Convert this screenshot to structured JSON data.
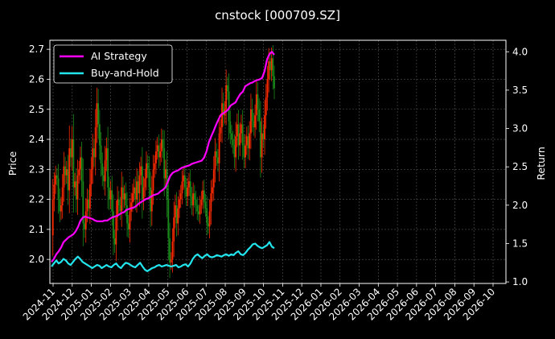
{
  "chart_data": {
    "type": "line",
    "title": "cnstock [000709.SZ]",
    "xlabel": "",
    "ylabel": "Price",
    "y2label": "Return",
    "ylim": [
      1.92,
      2.73
    ],
    "y2lim": [
      0.98,
      4.15
    ],
    "y_ticks": [
      "2.0",
      "2.1",
      "2.2",
      "2.3",
      "2.4",
      "2.5",
      "2.6",
      "2.7"
    ],
    "y2_ticks": [
      "1.0",
      "1.5",
      "2.0",
      "2.5",
      "3.0",
      "3.5",
      "4.0"
    ],
    "x_ticks": [
      "2024-11",
      "2024-12",
      "2025-01",
      "2025-02",
      "2025-03",
      "2025-04",
      "2025-05",
      "2025-06",
      "2025-07",
      "2025-08",
      "2025-09",
      "2025-10",
      "2025-11",
      "2025-12",
      "2026-01",
      "2026-02",
      "2026-03",
      "2026-04",
      "2026-05",
      "2026-06",
      "2026-07",
      "2026-08",
      "2026-09",
      "2026-10"
    ],
    "grid": true,
    "legend_position": "top-left",
    "background": "#000000",
    "price_candles": {
      "up_color": "#ff2a00",
      "down_color": "#1a8a1a",
      "dates": [
        "2024-11-01",
        "2025-11-10"
      ],
      "close": [
        2.08,
        2.2,
        2.25,
        2.28,
        2.27,
        2.2,
        2.16,
        2.18,
        2.24,
        2.31,
        2.28,
        2.3,
        2.23,
        2.37,
        2.34,
        2.4,
        2.24,
        2.26,
        2.2,
        2.28,
        2.3,
        2.34,
        2.26,
        2.12,
        2.1,
        2.16,
        2.2,
        2.17,
        2.25,
        2.3,
        2.37,
        2.34,
        2.44,
        2.52,
        2.45,
        2.38,
        2.32,
        2.28,
        2.26,
        2.33,
        2.37,
        2.24,
        2.2,
        2.23,
        2.16,
        2.07,
        2.05,
        2.14,
        2.2,
        2.18,
        2.16,
        2.24,
        2.2,
        2.22,
        2.18,
        2.12,
        2.1,
        2.16,
        2.19,
        2.22,
        2.24,
        2.2,
        2.26,
        2.22,
        2.28,
        2.31,
        2.2,
        2.24,
        2.27,
        2.32,
        2.3,
        2.24,
        2.16,
        2.23,
        2.3,
        2.32,
        2.36,
        2.38,
        2.34,
        2.36,
        2.4,
        2.37,
        2.27,
        2.3,
        2.2,
        2.07,
        1.99,
        2.0,
        2.06,
        2.14,
        2.18,
        2.12,
        2.17,
        2.2,
        2.22,
        2.26,
        2.28,
        2.24,
        2.21,
        2.24,
        2.26,
        2.21,
        2.18,
        2.22,
        2.2,
        2.18,
        2.16,
        2.15,
        2.18,
        2.2,
        2.23,
        2.19,
        2.17,
        2.12,
        2.11,
        2.16,
        2.22,
        2.24,
        2.3,
        2.36,
        2.34,
        2.32,
        2.42,
        2.44,
        2.52,
        2.48,
        2.5,
        2.58,
        2.56,
        2.46,
        2.42,
        2.4,
        2.38,
        2.34,
        2.41,
        2.45,
        2.38,
        2.42,
        2.45,
        2.38,
        2.34,
        2.38,
        2.41,
        2.37,
        2.42,
        2.5,
        2.46,
        2.44,
        2.48,
        2.55,
        2.5,
        2.46,
        2.34,
        2.42,
        2.4,
        2.48,
        2.54,
        2.6,
        2.66,
        2.63,
        2.67,
        2.61,
        2.57
      ]
    },
    "series": [
      {
        "name": "AI Strategy",
        "color": "#ff00ff",
        "values": [
          1.26,
          1.3,
          1.36,
          1.4,
          1.45,
          1.52,
          1.55,
          1.58,
          1.6,
          1.62,
          1.66,
          1.72,
          1.8,
          1.84,
          1.85,
          1.84,
          1.83,
          1.82,
          1.8,
          1.79,
          1.79,
          1.79,
          1.8,
          1.8,
          1.82,
          1.84,
          1.85,
          1.86,
          1.88,
          1.9,
          1.91,
          1.94,
          1.95,
          1.96,
          1.97,
          1.99,
          2.02,
          2.04,
          2.06,
          2.08,
          2.09,
          2.11,
          2.13,
          2.14,
          2.15,
          2.18,
          2.2,
          2.23,
          2.3,
          2.38,
          2.42,
          2.44,
          2.45,
          2.47,
          2.49,
          2.5,
          2.51,
          2.52,
          2.54,
          2.55,
          2.56,
          2.57,
          2.58,
          2.62,
          2.7,
          2.82,
          2.9,
          2.97,
          3.05,
          3.12,
          3.18,
          3.2,
          3.22,
          3.25,
          3.3,
          3.32,
          3.34,
          3.4,
          3.45,
          3.48,
          3.55,
          3.57,
          3.59,
          3.6,
          3.62,
          3.63,
          3.64,
          3.66,
          3.75,
          3.9,
          3.97,
          4.0,
          3.96
        ]
      },
      {
        "name": "Buy-and-Hold",
        "color": "#22e5ee",
        "values": [
          1.2,
          1.24,
          1.28,
          1.24,
          1.26,
          1.3,
          1.28,
          1.24,
          1.22,
          1.26,
          1.3,
          1.33,
          1.3,
          1.26,
          1.24,
          1.22,
          1.2,
          1.18,
          1.2,
          1.22,
          1.21,
          1.18,
          1.2,
          1.22,
          1.2,
          1.19,
          1.22,
          1.24,
          1.2,
          1.18,
          1.22,
          1.25,
          1.24,
          1.22,
          1.2,
          1.19,
          1.22,
          1.25,
          1.2,
          1.16,
          1.14,
          1.16,
          1.18,
          1.19,
          1.21,
          1.22,
          1.2,
          1.21,
          1.22,
          1.21,
          1.2,
          1.21,
          1.22,
          1.19,
          1.2,
          1.22,
          1.23,
          1.2,
          1.24,
          1.3,
          1.34,
          1.36,
          1.33,
          1.31,
          1.34,
          1.36,
          1.33,
          1.32,
          1.33,
          1.35,
          1.34,
          1.33,
          1.35,
          1.36,
          1.34,
          1.36,
          1.35,
          1.38,
          1.4,
          1.36,
          1.35,
          1.38,
          1.42,
          1.45,
          1.49,
          1.5,
          1.47,
          1.45,
          1.44,
          1.46,
          1.48,
          1.52,
          1.46,
          1.44
        ]
      }
    ]
  }
}
